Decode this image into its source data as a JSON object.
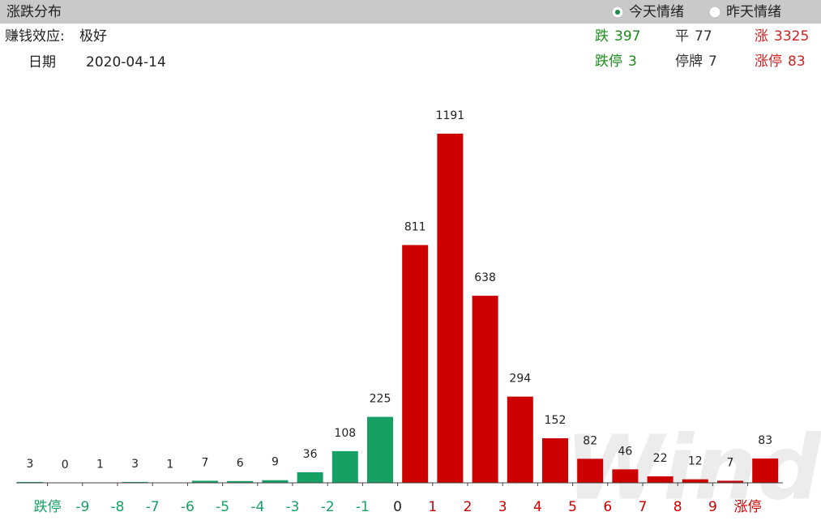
{
  "header": {
    "title": "涨跌分布",
    "options": [
      {
        "label": "今天情绪",
        "selected": true
      },
      {
        "label": "昨天情绪",
        "selected": false
      }
    ]
  },
  "effect": {
    "label": "赚钱效应:",
    "value": "极好"
  },
  "date": {
    "label": "日期",
    "value": "2020-04-14"
  },
  "stats": [
    [
      {
        "label": "跌",
        "value": 397,
        "color": "#1a8c1a"
      },
      {
        "label": "平",
        "value": 77,
        "color": "#333333"
      },
      {
        "label": "涨",
        "value": 3325,
        "color": "#d42020"
      }
    ],
    [
      {
        "label": "跌停",
        "value": 3,
        "color": "#1a8c1a"
      },
      {
        "label": "停牌",
        "value": 7,
        "color": "#333333"
      },
      {
        "label": "涨停",
        "value": 83,
        "color": "#d42020"
      }
    ]
  ],
  "chart_data": {
    "type": "bar",
    "values": [
      3,
      0,
      1,
      3,
      1,
      7,
      6,
      9,
      36,
      108,
      225,
      811,
      1191,
      638,
      294,
      152,
      82,
      46,
      22,
      12,
      7,
      83
    ],
    "colors": [
      "#16a064",
      "#16a064",
      "#16a064",
      "#16a064",
      "#16a064",
      "#16a064",
      "#16a064",
      "#16a064",
      "#16a064",
      "#16a064",
      "#16a064",
      "#cc0000",
      "#cc0000",
      "#cc0000",
      "#cc0000",
      "#cc0000",
      "#cc0000",
      "#cc0000",
      "#cc0000",
      "#cc0000",
      "#cc0000",
      "#cc0000"
    ],
    "xticks": [
      "跌停",
      "-9",
      "-8",
      "-7",
      "-6",
      "-5",
      "-4",
      "-3",
      "-2",
      "-1",
      "0",
      "1",
      "2",
      "3",
      "4",
      "5",
      "6",
      "7",
      "8",
      "9",
      "涨停"
    ],
    "xtick_colors": [
      "#16a064",
      "#16a064",
      "#16a064",
      "#16a064",
      "#16a064",
      "#16a064",
      "#16a064",
      "#16a064",
      "#16a064",
      "#16a064",
      "#222222",
      "#cc0000",
      "#cc0000",
      "#cc0000",
      "#cc0000",
      "#cc0000",
      "#cc0000",
      "#cc0000",
      "#cc0000",
      "#cc0000",
      "#cc0000"
    ],
    "ylim": [
      0,
      1300
    ],
    "watermark": "Wind"
  }
}
